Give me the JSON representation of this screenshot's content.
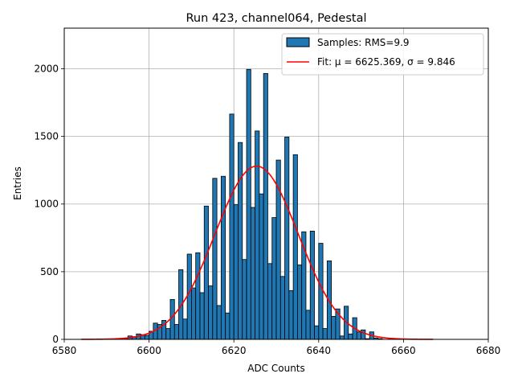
{
  "chart_data": {
    "type": "bar",
    "title": "Run 423, channel064, Pedestal",
    "xlabel": "ADC Counts",
    "ylabel": "Entries",
    "xlim": [
      6580,
      6680
    ],
    "ylim": [
      0,
      2300
    ],
    "grid": true,
    "legend_position": "top-right",
    "xticks": [
      6580,
      6600,
      6620,
      6640,
      6660,
      6680
    ],
    "yticks": [
      0,
      500,
      1000,
      1500,
      2000
    ],
    "bin_width": 1,
    "histogram": {
      "name": "Samples: RMS=9.9",
      "color": "#1f77b4",
      "edgecolor": "#000000",
      "bin_starts": [
        6594,
        6595,
        6596,
        6597,
        6598,
        6599,
        6600,
        6601,
        6602,
        6603,
        6604,
        6605,
        6606,
        6607,
        6608,
        6609,
        6610,
        6611,
        6612,
        6613,
        6614,
        6615,
        6616,
        6617,
        6618,
        6619,
        6620,
        6621,
        6622,
        6623,
        6624,
        6625,
        6626,
        6627,
        6628,
        6629,
        6630,
        6631,
        6632,
        6633,
        6634,
        6635,
        6636,
        6637,
        6638,
        6639,
        6640,
        6641,
        6642,
        6643,
        6644,
        6645,
        6646,
        6647,
        6648,
        6649,
        6650,
        6651,
        6652,
        6653,
        6654
      ],
      "values": [
        5,
        25,
        20,
        40,
        35,
        30,
        60,
        120,
        110,
        140,
        80,
        295,
        110,
        515,
        150,
        630,
        380,
        640,
        345,
        985,
        395,
        1190,
        250,
        1205,
        195,
        1665,
        995,
        1455,
        590,
        1995,
        975,
        1540,
        1075,
        1965,
        560,
        900,
        1325,
        465,
        1495,
        360,
        1365,
        550,
        795,
        215,
        800,
        100,
        710,
        80,
        580,
        170,
        225,
        25,
        245,
        40,
        160,
        55,
        70,
        5,
        55,
        10,
        5
      ]
    },
    "fit": {
      "name": "Fit: μ = 6625.369, σ = 9.846",
      "color": "#ff0000",
      "mu": 6625.369,
      "sigma": 9.846,
      "amplitude": 1280,
      "x_range": [
        6584,
        6667
      ]
    }
  }
}
